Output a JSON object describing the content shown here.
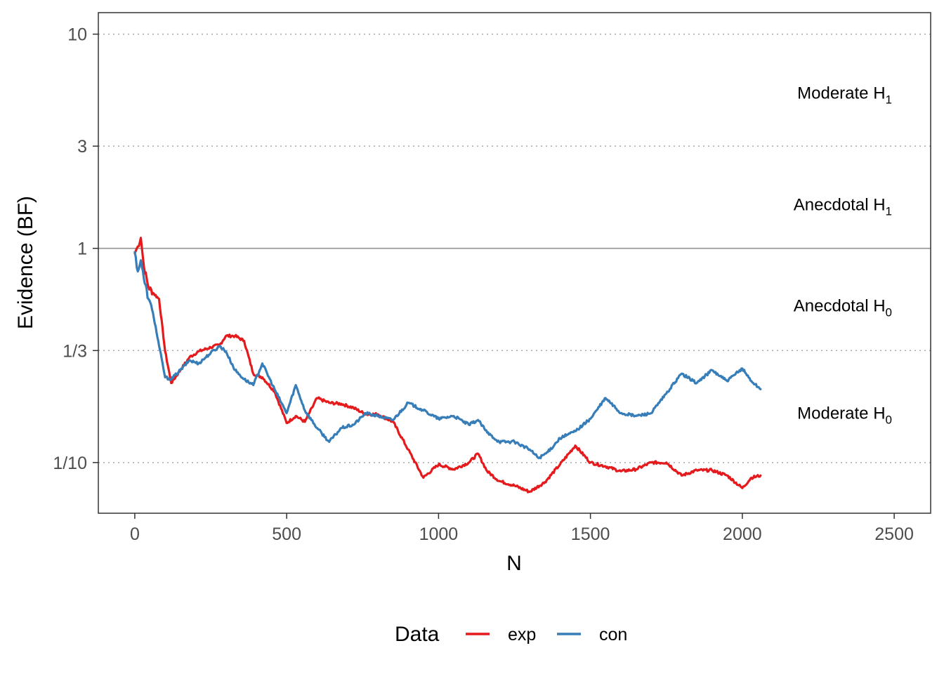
{
  "chart_data": {
    "type": "line",
    "title": "",
    "xlabel": "N",
    "ylabel": "Evidence (BF)",
    "y_scale": "log",
    "xlim": [
      -120,
      2620
    ],
    "ylim": [
      0.058,
      12.6
    ],
    "x_ticks": [
      0,
      500,
      1000,
      1500,
      2000,
      2500
    ],
    "x_tick_labels": [
      "0",
      "500",
      "1000",
      "1500",
      "2000",
      "2500"
    ],
    "y_ticks": [
      0.1,
      0.3333,
      1,
      3,
      10
    ],
    "y_tick_labels": [
      "1/10",
      "1/3",
      "1",
      "3",
      "10"
    ],
    "grid": "dotted horizontal lines at 1/10, 1/3, 3 and 10; solid grey reference line at 1",
    "reference_line": 1,
    "annotations": [
      {
        "text": "Moderate H",
        "sub": "1"
      },
      {
        "text": "Anecdotal H",
        "sub": "1"
      },
      {
        "text": "Anecdotal H",
        "sub": "0"
      },
      {
        "text": "Moderate H",
        "sub": "0"
      }
    ],
    "annotation_y": [
      5.3,
      1.6,
      0.54,
      0.17
    ],
    "legend": {
      "title": "Data",
      "position": "bottom"
    },
    "series": [
      {
        "name": "exp",
        "color": "#e41a1c",
        "x": [
          0,
          10,
          20,
          30,
          45,
          60,
          80,
          100,
          120,
          150,
          180,
          210,
          250,
          280,
          300,
          330,
          360,
          390,
          420,
          460,
          500,
          530,
          560,
          600,
          640,
          680,
          720,
          760,
          800,
          850,
          900,
          950,
          1000,
          1050,
          1100,
          1130,
          1160,
          1200,
          1250,
          1300,
          1350,
          1400,
          1450,
          1500,
          1550,
          1600,
          1650,
          1700,
          1750,
          1800,
          1850,
          1900,
          1950,
          2000,
          2030,
          2060
        ],
        "y": [
          0.95,
          1.02,
          1.12,
          0.82,
          0.66,
          0.62,
          0.58,
          0.33,
          0.235,
          0.27,
          0.31,
          0.33,
          0.345,
          0.355,
          0.39,
          0.39,
          0.37,
          0.26,
          0.25,
          0.215,
          0.153,
          0.165,
          0.155,
          0.2,
          0.19,
          0.188,
          0.18,
          0.168,
          0.168,
          0.155,
          0.115,
          0.085,
          0.098,
          0.093,
          0.1,
          0.11,
          0.091,
          0.082,
          0.078,
          0.073,
          0.081,
          0.098,
          0.12,
          0.1,
          0.096,
          0.091,
          0.093,
          0.1,
          0.1,
          0.087,
          0.092,
          0.092,
          0.087,
          0.076,
          0.085,
          0.087
        ]
      },
      {
        "name": "con",
        "color": "#377eb8",
        "x": [
          0,
          10,
          20,
          30,
          45,
          60,
          80,
          100,
          120,
          150,
          180,
          210,
          250,
          280,
          300,
          330,
          360,
          390,
          420,
          460,
          500,
          530,
          560,
          600,
          640,
          680,
          720,
          760,
          800,
          850,
          900,
          950,
          1000,
          1050,
          1100,
          1130,
          1160,
          1200,
          1250,
          1300,
          1330,
          1360,
          1400,
          1450,
          1500,
          1550,
          1600,
          1650,
          1700,
          1750,
          1800,
          1850,
          1900,
          1950,
          2000,
          2030,
          2060
        ],
        "y": [
          0.96,
          0.78,
          0.88,
          0.72,
          0.58,
          0.5,
          0.35,
          0.25,
          0.245,
          0.27,
          0.3,
          0.29,
          0.325,
          0.35,
          0.33,
          0.27,
          0.245,
          0.23,
          0.29,
          0.22,
          0.17,
          0.23,
          0.175,
          0.145,
          0.125,
          0.145,
          0.15,
          0.17,
          0.165,
          0.158,
          0.19,
          0.175,
          0.16,
          0.165,
          0.15,
          0.158,
          0.138,
          0.125,
          0.125,
          0.115,
          0.105,
          0.112,
          0.13,
          0.14,
          0.16,
          0.2,
          0.17,
          0.165,
          0.17,
          0.21,
          0.26,
          0.235,
          0.27,
          0.24,
          0.275,
          0.24,
          0.22
        ]
      }
    ]
  }
}
